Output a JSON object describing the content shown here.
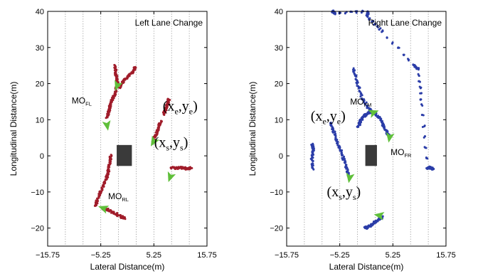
{
  "colors": {
    "left_track": "#a01c2a",
    "right_track": "#2b3da8",
    "arrow": "#5fbf3a",
    "ego_vehicle": "#3a3a3a",
    "grid": "#8c8c8c"
  },
  "chart_data": [
    {
      "type": "scatter",
      "title": "Left Lane Change",
      "xlabel": "Lateral Distance(m)",
      "ylabel": "Longitudinal Distance(m)",
      "xlim": [
        -15.75,
        15.75
      ],
      "ylim": [
        -25,
        40
      ],
      "xticks": [
        -15.75,
        -5.25,
        5.25,
        15.75
      ],
      "xtick_labels": [
        "−15.75",
        "−5.25",
        "5.25",
        "15.75"
      ],
      "yticks": [
        -20,
        -10,
        0,
        10,
        20,
        30,
        40
      ],
      "ytick_labels": [
        "−20",
        "−10",
        "0",
        "10",
        "20",
        "30",
        "40"
      ],
      "grid": "vertical-dotted",
      "ego_vehicle": {
        "x": [
          -2.1,
          0.9
        ],
        "y": [
          -2.8,
          3.0
        ]
      },
      "tracks": [
        {
          "points": [
            [
              -2.4,
              25
            ],
            [
              -2.3,
              23
            ],
            [
              -2.1,
              21.5
            ],
            [
              -1.9,
              20
            ],
            [
              -2.1,
              19
            ],
            [
              -2.5,
              17
            ],
            [
              -3.0,
              15.5
            ],
            [
              -3.4,
              14
            ],
            [
              -3.7,
              12
            ],
            [
              -4.0,
              10.5
            ]
          ]
        },
        {
          "points": [
            [
              -1.6,
              19
            ],
            [
              -0.5,
              21
            ],
            [
              0.5,
              22.5
            ],
            [
              1.3,
              23.6
            ],
            [
              1.6,
              24.5
            ]
          ]
        },
        {
          "points": [
            [
              -3.3,
              0
            ],
            [
              -3.5,
              -2
            ],
            [
              -3.7,
              -4
            ],
            [
              -4.1,
              -6
            ],
            [
              -4.6,
              -8
            ],
            [
              -5.3,
              -10
            ],
            [
              -5.9,
              -12
            ],
            [
              -6.3,
              -14
            ]
          ]
        },
        {
          "points": [
            [
              -4.8,
              -14.5
            ],
            [
              -3.8,
              -15
            ],
            [
              -2.6,
              -15.8
            ],
            [
              -1.5,
              -16.7
            ],
            [
              -0.6,
              -17.2
            ]
          ]
        },
        {
          "points": [
            [
              5.1,
              4
            ],
            [
              5.7,
              6
            ],
            [
              6.2,
              8
            ],
            [
              6.6,
              9.5
            ]
          ]
        },
        {
          "points": [
            [
              7.2,
              11.5
            ],
            [
              7.6,
              13
            ],
            [
              8.0,
              14.5
            ],
            [
              8.2,
              15.5
            ]
          ]
        },
        {
          "points": [
            [
              8.7,
              -3.3
            ],
            [
              9.8,
              -3.4
            ],
            [
              10.8,
              -3.3
            ],
            [
              11.8,
              -3.6
            ],
            [
              12.6,
              -3.3
            ]
          ]
        }
      ],
      "arrows": [
        {
          "x": -2.0,
          "y": 19.5,
          "dir": -110
        },
        {
          "x": -4.0,
          "y": 8.5,
          "dir": -80
        },
        {
          "x": 5.2,
          "y": 4.0,
          "dir": -120
        },
        {
          "x": 8.5,
          "y": -5.8,
          "dir": -110
        },
        {
          "x": -4.7,
          "y": -14.5,
          "dir": 160
        }
      ],
      "annotations": [
        {
          "base": "MO",
          "sub": "FL",
          "x": -11.0,
          "y": 14.5
        },
        {
          "base": "MO",
          "sub": "RL",
          "x": -3.8,
          "y": -12.0
        },
        {
          "coord": "e",
          "x": 7.0,
          "y": 12.5
        },
        {
          "coord": "s",
          "x": 5.3,
          "y": 2.5
        }
      ]
    },
    {
      "type": "scatter",
      "title": "Right Lane Change",
      "xlabel": "Lateral Distance(m)",
      "ylabel": "Longitudinal Distance(m)",
      "xlim": [
        -15.75,
        15.75
      ],
      "ylim": [
        -25,
        40
      ],
      "xticks": [
        -15.75,
        -5.25,
        5.25,
        15.75
      ],
      "xtick_labels": [
        "−15.75",
        "−5.25",
        "5.25",
        "15.75"
      ],
      "yticks": [
        -20,
        -10,
        0,
        10,
        20,
        30,
        40
      ],
      "ytick_labels": [
        "−20",
        "−10",
        "0",
        "10",
        "20",
        "30",
        "40"
      ],
      "grid": "vertical-dotted",
      "ego_vehicle": {
        "x": [
          -0.2,
          2.1
        ],
        "y": [
          -2.8,
          3.0
        ]
      },
      "tracks": [
        {
          "points": [
            [
              -7.1,
              9
            ],
            [
              -6.4,
              6.5
            ],
            [
              -5.5,
              3
            ],
            [
              -4.6,
              -0.5
            ],
            [
              -4.0,
              -3
            ],
            [
              -3.5,
              -5.3
            ]
          ]
        },
        {
          "points": [
            [
              -2.5,
              24
            ],
            [
              -1.8,
              20
            ],
            [
              -0.8,
              16
            ],
            [
              0.5,
              13
            ],
            [
              1.8,
              11.5
            ],
            [
              2.9,
              10
            ],
            [
              3.5,
              8
            ],
            [
              4.1,
              6.5
            ],
            [
              4.6,
              5.2
            ]
          ]
        },
        {
          "points": [
            [
              -1.6,
              8
            ],
            [
              -1.2,
              9.5
            ],
            [
              -0.7,
              10.7
            ],
            [
              0.2,
              11.8
            ],
            [
              0.9,
              12.2
            ]
          ]
        },
        {
          "points": [
            [
              -0.2,
              -20
            ],
            [
              0.6,
              -19.5
            ],
            [
              1.6,
              -18.5
            ],
            [
              2.5,
              -17.5
            ],
            [
              3.2,
              -17
            ]
          ]
        },
        {
          "points": [
            [
              -10.7,
              3.2
            ],
            [
              -10.4,
              1.7
            ],
            [
              -10.8,
              -0.6
            ],
            [
              -10.5,
              -3.5
            ]
          ]
        },
        {
          "points": [
            [
              -6.7,
              40
            ],
            [
              -6.3,
              39.5
            ],
            [
              0.3,
              40
            ],
            [
              0.2,
              38.6
            ],
            [
              3.2,
              34.5
            ],
            [
              9.4,
              25
            ],
            [
              10.3,
              24
            ],
            [
              11.0,
              14
            ],
            [
              12.1,
              -3.4
            ],
            [
              12.6,
              -3.2
            ],
            [
              13.2,
              -3.8
            ]
          ]
        }
      ],
      "arrows": [
        {
          "x": 4.6,
          "y": 5.2,
          "dir": -100
        },
        {
          "x": 1.4,
          "y": 12.0,
          "dir": 20
        },
        {
          "x": -3.3,
          "y": -6.0,
          "dir": -100
        },
        {
          "x": 2.6,
          "y": -16.5,
          "dir": 170
        }
      ],
      "annotations": [
        {
          "base": "MO",
          "sub": "FM",
          "x": -3.2,
          "y": 14.2
        },
        {
          "base": "MO",
          "sub": "FR",
          "x": 4.8,
          "y": 0.2
        },
        {
          "coord": "e",
          "x": -11.0,
          "y": 9.8
        },
        {
          "coord": "s",
          "x": -7.8,
          "y": -11.2
        }
      ]
    }
  ]
}
